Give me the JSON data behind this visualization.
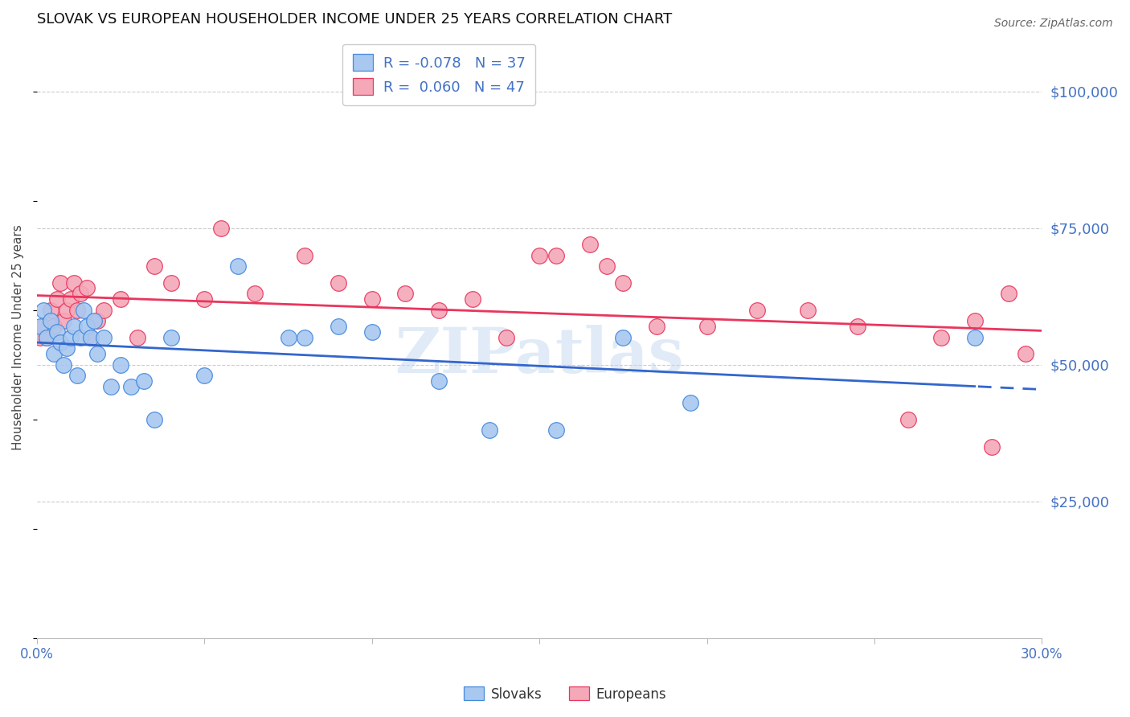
{
  "title": "SLOVAK VS EUROPEAN HOUSEHOLDER INCOME UNDER 25 YEARS CORRELATION CHART",
  "source": "Source: ZipAtlas.com",
  "ylabel": "Householder Income Under 25 years",
  "watermark": "ZIPatlas",
  "legend_sk_text": "R = -0.078   N = 37",
  "legend_eu_text": "R =  0.060   N = 47",
  "legend_sk_label": "Slovaks",
  "legend_eu_label": "Europeans",
  "x_min": 0.0,
  "x_max": 0.3,
  "y_min": 0,
  "y_max": 110000,
  "yticks": [
    25000,
    50000,
    75000,
    100000
  ],
  "ytick_labels": [
    "$25,000",
    "$50,000",
    "$75,000",
    "$100,000"
  ],
  "xticks": [
    0.0,
    0.05,
    0.1,
    0.15,
    0.2,
    0.25,
    0.3
  ],
  "xtick_labels": [
    "0.0%",
    "",
    "",
    "",
    "",
    "",
    "30.0%"
  ],
  "slovak_fill": "#A8C8F0",
  "european_fill": "#F4A8B8",
  "slovak_edge": "#4488DD",
  "european_edge": "#E8365D",
  "slovak_line": "#3366CC",
  "european_line": "#E8365D",
  "right_label_color": "#4472C4",
  "bg": "#FFFFFF",
  "grid_color": "#CCCCCC",
  "slovaks_x": [
    0.001,
    0.002,
    0.003,
    0.004,
    0.005,
    0.006,
    0.007,
    0.008,
    0.009,
    0.01,
    0.011,
    0.012,
    0.013,
    0.014,
    0.015,
    0.016,
    0.017,
    0.018,
    0.02,
    0.022,
    0.025,
    0.028,
    0.032,
    0.035,
    0.04,
    0.05,
    0.06,
    0.075,
    0.08,
    0.09,
    0.1,
    0.12,
    0.135,
    0.155,
    0.175,
    0.195,
    0.28
  ],
  "slovaks_y": [
    57000,
    60000,
    55000,
    58000,
    52000,
    56000,
    54000,
    50000,
    53000,
    55000,
    57000,
    48000,
    55000,
    60000,
    57000,
    55000,
    58000,
    52000,
    55000,
    46000,
    50000,
    46000,
    47000,
    40000,
    55000,
    48000,
    68000,
    55000,
    55000,
    57000,
    56000,
    47000,
    38000,
    38000,
    55000,
    43000,
    55000
  ],
  "europeans_x": [
    0.001,
    0.002,
    0.003,
    0.004,
    0.005,
    0.006,
    0.007,
    0.008,
    0.009,
    0.01,
    0.011,
    0.012,
    0.013,
    0.015,
    0.016,
    0.018,
    0.02,
    0.025,
    0.03,
    0.035,
    0.04,
    0.05,
    0.055,
    0.065,
    0.08,
    0.09,
    0.1,
    0.11,
    0.13,
    0.14,
    0.155,
    0.165,
    0.175,
    0.185,
    0.2,
    0.215,
    0.23,
    0.245,
    0.26,
    0.27,
    0.28,
    0.285,
    0.29,
    0.295,
    0.12,
    0.15,
    0.17
  ],
  "europeans_y": [
    55000,
    57000,
    55000,
    60000,
    57000,
    62000,
    65000,
    58000,
    60000,
    62000,
    65000,
    60000,
    63000,
    64000,
    55000,
    58000,
    60000,
    62000,
    55000,
    68000,
    65000,
    62000,
    75000,
    63000,
    70000,
    65000,
    62000,
    63000,
    62000,
    55000,
    70000,
    72000,
    65000,
    57000,
    57000,
    60000,
    60000,
    57000,
    40000,
    55000,
    58000,
    35000,
    63000,
    52000,
    60000,
    70000,
    68000
  ]
}
